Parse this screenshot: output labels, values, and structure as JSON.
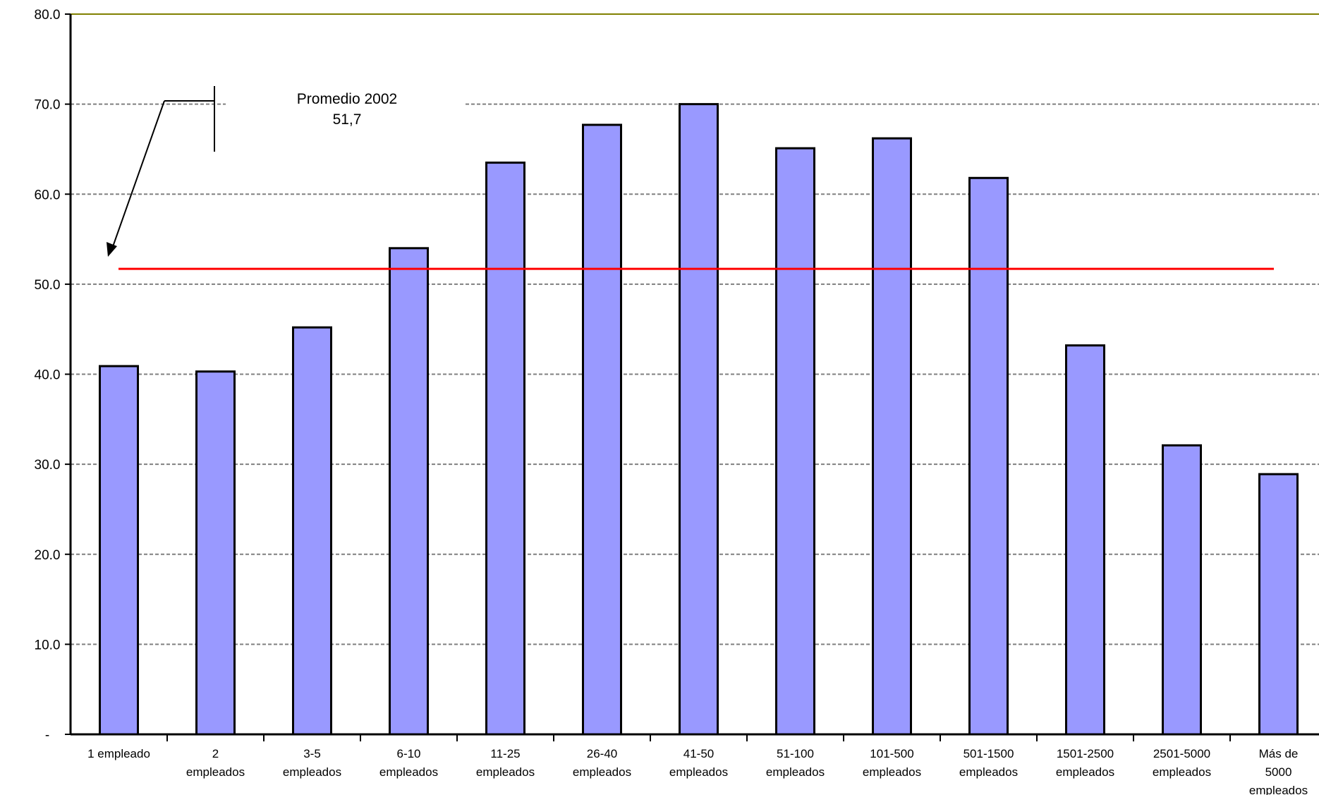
{
  "chart_data": {
    "type": "bar",
    "categories": [
      "1 empleado",
      "2 empleados",
      "3-5 empleados",
      "6-10 empleados",
      "11-25 empleados",
      "26-40 empleados",
      "41-50 empleados",
      "51-100 empleados",
      "101-500 empleados",
      "501-1500 empleados",
      "1501-2500 empleados",
      "2501-5000 empleados",
      "Más de 5000 empleados"
    ],
    "category_lines": [
      [
        "1 empleado"
      ],
      [
        "2",
        "empleados"
      ],
      [
        "3-5",
        "empleados"
      ],
      [
        "6-10",
        "empleados"
      ],
      [
        "11-25",
        "empleados"
      ],
      [
        "26-40",
        "empleados"
      ],
      [
        "41-50",
        "empleados"
      ],
      [
        "51-100",
        "empleados"
      ],
      [
        "101-500",
        "empleados"
      ],
      [
        "501-1500",
        "empleados"
      ],
      [
        "1501-2500",
        "empleados"
      ],
      [
        "2501-5000",
        "empleados"
      ],
      [
        "Más de",
        "5000",
        "empleados"
      ]
    ],
    "values": [
      40.9,
      40.3,
      45.2,
      54.0,
      63.5,
      67.7,
      70.0,
      65.1,
      66.2,
      61.8,
      43.2,
      32.1,
      28.9
    ],
    "ylim": [
      0,
      80
    ],
    "yticks": [
      0,
      10,
      20,
      30,
      40,
      50,
      60,
      70,
      80
    ],
    "ytick_labels": [
      "-",
      "10.0",
      "20.0",
      "30.0",
      "40.0",
      "50.0",
      "60.0",
      "70.0",
      "80.0"
    ],
    "average": {
      "value": 51.7,
      "label_line1": "Promedio 2002",
      "label_line2": "51,7"
    },
    "colors": {
      "bar": "#9999ff",
      "bar_stroke": "#000000",
      "average_line": "#ff0000",
      "grid": "#808080",
      "top_border": "#808000"
    },
    "grid": true,
    "legend": "none"
  }
}
